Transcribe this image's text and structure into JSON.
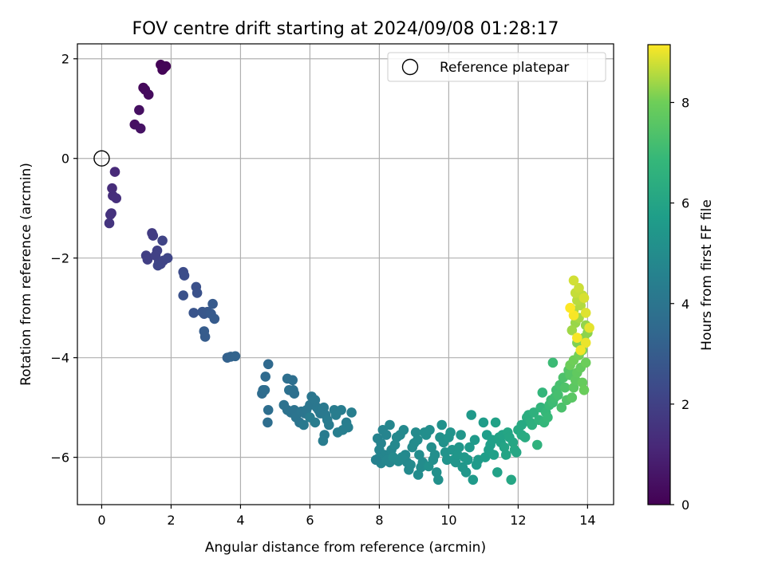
{
  "chart_data": {
    "type": "scatter",
    "title": "FOV centre drift starting at 2024/09/08 01:28:17",
    "xlabel": "Angular distance from reference (arcmin)",
    "ylabel": "Rotation from reference (arcmin)",
    "xlim": [
      -0.7,
      14.75
    ],
    "ylim": [
      -6.95,
      2.3
    ],
    "xticks": [
      0,
      2,
      4,
      6,
      8,
      10,
      12,
      14
    ],
    "yticks": [
      -6,
      -4,
      -2,
      0,
      2
    ],
    "tick_labels_x": [
      "0",
      "2",
      "4",
      "6",
      "8",
      "10",
      "12",
      "14"
    ],
    "tick_labels_y": [
      "−6",
      "−4",
      "−2",
      "0",
      "2"
    ],
    "grid": true,
    "legend": {
      "position": "top-right",
      "entries": [
        "Reference platepar"
      ]
    },
    "reference_point": {
      "x": 0,
      "y": 0,
      "marker": "open-circle"
    },
    "colorbar": {
      "label": "Hours from first FF file",
      "range": [
        0,
        9.15
      ],
      "ticks": [
        0,
        2,
        4,
        6,
        8
      ],
      "tick_labels": [
        "0",
        "2",
        "4",
        "6",
        "8"
      ],
      "colormap": "viridis"
    },
    "points": [
      [
        1.7,
        1.88,
        0.05
      ],
      [
        1.85,
        1.85,
        0.08
      ],
      [
        1.75,
        1.78,
        0.1
      ],
      [
        1.8,
        1.82,
        0.12
      ],
      [
        1.2,
        1.42,
        0.2
      ],
      [
        1.25,
        1.38,
        0.25
      ],
      [
        1.35,
        1.28,
        0.3
      ],
      [
        1.08,
        0.97,
        0.4
      ],
      [
        0.95,
        0.68,
        0.45
      ],
      [
        1.12,
        0.6,
        0.5
      ],
      [
        0.38,
        -0.27,
        1.2
      ],
      [
        0.3,
        -0.6,
        1.3
      ],
      [
        0.32,
        -0.75,
        1.35
      ],
      [
        0.42,
        -0.8,
        1.4
      ],
      [
        0.28,
        -1.1,
        1.45
      ],
      [
        0.25,
        -1.13,
        1.5
      ],
      [
        0.22,
        -1.3,
        1.55
      ],
      [
        1.45,
        -1.5,
        1.8
      ],
      [
        1.48,
        -1.55,
        1.85
      ],
      [
        1.28,
        -1.95,
        1.9
      ],
      [
        1.32,
        -2.03,
        1.95
      ],
      [
        1.6,
        -1.85,
        2.0
      ],
      [
        1.55,
        -1.95,
        2.0
      ],
      [
        1.65,
        -2.08,
        2.05
      ],
      [
        1.7,
        -2.12,
        2.1
      ],
      [
        1.78,
        -2.05,
        2.1
      ],
      [
        1.9,
        -2.0,
        2.15
      ],
      [
        1.75,
        -1.65,
        2.1
      ],
      [
        1.62,
        -2.15,
        2.15
      ],
      [
        2.35,
        -2.28,
        2.4
      ],
      [
        2.38,
        -2.35,
        2.45
      ],
      [
        2.72,
        -2.58,
        2.55
      ],
      [
        2.75,
        -2.7,
        2.6
      ],
      [
        2.35,
        -2.75,
        2.6
      ],
      [
        2.65,
        -3.1,
        2.7
      ],
      [
        2.9,
        -3.08,
        2.75
      ],
      [
        2.95,
        -3.12,
        2.8
      ],
      [
        3.05,
        -3.08,
        2.85
      ],
      [
        3.2,
        -2.92,
        2.9
      ],
      [
        3.15,
        -3.12,
        2.9
      ],
      [
        3.25,
        -3.22,
        2.95
      ],
      [
        2.95,
        -3.47,
        3.0
      ],
      [
        2.98,
        -3.58,
        3.0
      ],
      [
        3.62,
        -4.0,
        3.2
      ],
      [
        3.72,
        -3.98,
        3.25
      ],
      [
        3.85,
        -3.97,
        3.3
      ],
      [
        4.8,
        -4.13,
        3.5
      ],
      [
        4.72,
        -4.38,
        3.55
      ],
      [
        4.65,
        -4.65,
        3.6
      ],
      [
        4.62,
        -4.72,
        3.6
      ],
      [
        4.7,
        -4.65,
        3.65
      ],
      [
        4.8,
        -5.05,
        3.7
      ],
      [
        4.78,
        -5.3,
        3.7
      ],
      [
        5.5,
        -4.45,
        3.75
      ],
      [
        5.35,
        -4.42,
        3.75
      ],
      [
        5.52,
        -4.65,
        3.8
      ],
      [
        5.55,
        -4.72,
        3.8
      ],
      [
        5.4,
        -4.65,
        3.8
      ],
      [
        5.25,
        -4.95,
        3.85
      ],
      [
        5.35,
        -5.05,
        3.85
      ],
      [
        5.45,
        -5.1,
        3.9
      ],
      [
        5.55,
        -5.05,
        3.9
      ],
      [
        5.6,
        -5.2,
        3.95
      ],
      [
        5.7,
        -5.3,
        3.95
      ],
      [
        5.75,
        -5.08,
        4.0
      ],
      [
        5.85,
        -5.12,
        4.0
      ],
      [
        5.9,
        -5.05,
        4.05
      ],
      [
        6.0,
        -4.95,
        4.05
      ],
      [
        6.05,
        -4.78,
        4.05
      ],
      [
        6.15,
        -4.85,
        4.1
      ],
      [
        6.2,
        -5.0,
        4.1
      ],
      [
        6.25,
        -5.05,
        4.15
      ],
      [
        6.3,
        -5.12,
        4.15
      ],
      [
        6.35,
        -5.05,
        4.2
      ],
      [
        6.4,
        -5.0,
        4.2
      ],
      [
        6.45,
        -5.15,
        4.2
      ],
      [
        6.5,
        -5.25,
        4.25
      ],
      [
        6.55,
        -5.35,
        4.25
      ],
      [
        6.42,
        -5.55,
        4.25
      ],
      [
        6.38,
        -5.67,
        4.3
      ],
      [
        6.7,
        -5.05,
        4.3
      ],
      [
        6.75,
        -5.15,
        4.35
      ],
      [
        6.9,
        -5.05,
        4.35
      ],
      [
        7.05,
        -5.3,
        4.35
      ],
      [
        7.1,
        -5.4,
        4.4
      ],
      [
        7.2,
        -5.1,
        4.4
      ],
      [
        6.8,
        -5.5,
        4.4
      ],
      [
        6.95,
        -5.45,
        4.4
      ],
      [
        6.15,
        -5.3,
        4.3
      ],
      [
        6.0,
        -5.2,
        4.3
      ],
      [
        5.82,
        -5.35,
        4.2
      ],
      [
        7.95,
        -5.62,
        4.6
      ],
      [
        8.05,
        -5.72,
        4.6
      ],
      [
        8.1,
        -5.45,
        4.65
      ],
      [
        8.2,
        -5.55,
        4.65
      ],
      [
        8.0,
        -5.85,
        4.65
      ],
      [
        8.15,
        -5.95,
        4.7
      ],
      [
        7.98,
        -6.02,
        4.7
      ],
      [
        8.05,
        -6.12,
        4.7
      ],
      [
        8.22,
        -6.05,
        4.75
      ],
      [
        8.3,
        -6.1,
        4.75
      ],
      [
        8.35,
        -5.85,
        4.75
      ],
      [
        8.45,
        -5.75,
        4.8
      ],
      [
        8.5,
        -5.6,
        4.8
      ],
      [
        8.6,
        -5.55,
        4.8
      ],
      [
        8.7,
        -5.45,
        4.85
      ],
      [
        8.75,
        -5.95,
        4.85
      ],
      [
        8.8,
        -6.1,
        4.85
      ],
      [
        8.85,
        -6.25,
        4.9
      ],
      [
        8.9,
        -6.15,
        4.9
      ],
      [
        8.65,
        -6.0,
        4.9
      ],
      [
        8.55,
        -6.08,
        4.9
      ],
      [
        8.4,
        -6.0,
        4.9
      ],
      [
        8.95,
        -5.8,
        4.95
      ],
      [
        9.0,
        -5.72,
        4.95
      ],
      [
        9.05,
        -5.5,
        4.95
      ],
      [
        9.1,
        -5.65,
        5.0
      ],
      [
        9.15,
        -5.95,
        5.0
      ],
      [
        9.2,
        -6.2,
        5.0
      ],
      [
        9.25,
        -6.1,
        5.0
      ],
      [
        9.3,
        -5.5,
        5.05
      ],
      [
        9.35,
        -5.55,
        5.05
      ],
      [
        9.45,
        -5.45,
        5.05
      ],
      [
        9.5,
        -5.8,
        5.1
      ],
      [
        9.55,
        -6.05,
        5.1
      ],
      [
        9.6,
        -5.95,
        5.1
      ],
      [
        9.65,
        -6.3,
        5.15
      ],
      [
        9.7,
        -6.45,
        5.15
      ],
      [
        9.42,
        -6.18,
        5.15
      ],
      [
        9.75,
        -5.6,
        5.2
      ],
      [
        9.8,
        -5.35,
        5.2
      ],
      [
        9.85,
        -5.7,
        5.2
      ],
      [
        9.9,
        -5.9,
        5.25
      ],
      [
        9.95,
        -6.05,
        5.25
      ],
      [
        10.0,
        -5.6,
        5.3
      ],
      [
        10.05,
        -5.5,
        5.3
      ],
      [
        10.1,
        -5.85,
        5.3
      ],
      [
        10.15,
        -6.05,
        5.35
      ],
      [
        10.2,
        -6.1,
        5.35
      ],
      [
        10.25,
        -5.95,
        5.4
      ],
      [
        10.3,
        -5.8,
        5.4
      ],
      [
        10.35,
        -5.55,
        5.4
      ],
      [
        10.4,
        -6.2,
        5.45
      ],
      [
        10.5,
        -6.3,
        5.45
      ],
      [
        10.55,
        -6.05,
        5.5
      ],
      [
        10.6,
        -5.8,
        5.5
      ],
      [
        10.65,
        -5.15,
        5.5
      ],
      [
        10.7,
        -6.45,
        5.55
      ],
      [
        10.75,
        -5.65,
        5.55
      ],
      [
        10.8,
        -6.15,
        5.6
      ],
      [
        10.85,
        -6.05,
        5.6
      ],
      [
        11.0,
        -5.3,
        5.65
      ],
      [
        11.05,
        -6.0,
        5.7
      ],
      [
        11.1,
        -5.55,
        5.7
      ],
      [
        11.15,
        -5.85,
        5.75
      ],
      [
        11.2,
        -5.75,
        5.75
      ],
      [
        11.25,
        -5.65,
        5.8
      ],
      [
        11.3,
        -5.95,
        5.8
      ],
      [
        11.35,
        -5.3,
        5.85
      ],
      [
        11.4,
        -6.3,
        5.85
      ],
      [
        11.45,
        -5.6,
        5.9
      ],
      [
        11.5,
        -5.7,
        5.9
      ],
      [
        11.55,
        -5.55,
        5.95
      ],
      [
        11.6,
        -5.8,
        6.0
      ],
      [
        11.65,
        -5.95,
        6.0
      ],
      [
        11.7,
        -5.5,
        6.05
      ],
      [
        11.75,
        -5.6,
        6.05
      ],
      [
        11.8,
        -6.45,
        6.1
      ],
      [
        11.85,
        -5.7,
        6.1
      ],
      [
        11.9,
        -5.85,
        6.15
      ],
      [
        12.0,
        -5.45,
        6.2
      ],
      [
        12.1,
        -5.55,
        6.25
      ],
      [
        12.2,
        -5.6,
        6.3
      ],
      [
        12.25,
        -5.2,
        6.35
      ],
      [
        12.3,
        -5.15,
        6.4
      ],
      [
        12.35,
        -5.3,
        6.45
      ],
      [
        12.4,
        -5.35,
        6.5
      ],
      [
        12.45,
        -5.1,
        6.55
      ],
      [
        12.55,
        -5.75,
        6.6
      ],
      [
        12.6,
        -5.25,
        6.65
      ],
      [
        12.65,
        -5.0,
        6.7
      ],
      [
        12.7,
        -4.7,
        6.75
      ],
      [
        12.75,
        -5.3,
        6.8
      ],
      [
        12.8,
        -5.1,
        6.85
      ],
      [
        12.85,
        -5.2,
        6.9
      ],
      [
        12.9,
        -4.95,
        6.95
      ],
      [
        12.95,
        -4.85,
        7.0
      ],
      [
        13.0,
        -4.9,
        7.05
      ],
      [
        13.05,
        -4.8,
        7.1
      ],
      [
        13.1,
        -4.65,
        7.15
      ],
      [
        13.15,
        -4.75,
        7.2
      ],
      [
        13.2,
        -4.55,
        7.25
      ],
      [
        13.25,
        -5.0,
        7.3
      ],
      [
        13.3,
        -4.4,
        7.35
      ],
      [
        13.35,
        -4.6,
        7.4
      ],
      [
        13.4,
        -4.85,
        7.45
      ],
      [
        13.45,
        -4.25,
        7.5
      ],
      [
        13.5,
        -4.35,
        7.55
      ],
      [
        13.55,
        -4.8,
        7.6
      ],
      [
        13.6,
        -4.6,
        7.65
      ],
      [
        13.65,
        -4.45,
        7.7
      ],
      [
        13.7,
        -4.3,
        7.75
      ],
      [
        13.8,
        -4.2,
        7.8
      ],
      [
        13.85,
        -4.5,
        7.85
      ],
      [
        13.9,
        -4.65,
        7.9
      ],
      [
        13.95,
        -4.1,
        7.95
      ],
      [
        13.5,
        -4.15,
        7.95
      ],
      [
        13.6,
        -4.05,
        8.0
      ],
      [
        13.75,
        -3.95,
        8.05
      ],
      [
        13.85,
        -3.85,
        8.1
      ],
      [
        13.7,
        -3.7,
        8.15
      ],
      [
        13.9,
        -3.6,
        8.2
      ],
      [
        14.0,
        -3.5,
        8.25
      ],
      [
        13.95,
        -3.35,
        8.3
      ],
      [
        13.65,
        -3.3,
        8.35
      ],
      [
        13.55,
        -3.45,
        8.4
      ],
      [
        13.75,
        -3.2,
        8.45
      ],
      [
        13.6,
        -3.05,
        8.5
      ],
      [
        13.8,
        -2.95,
        8.55
      ],
      [
        13.7,
        -2.85,
        8.6
      ],
      [
        13.85,
        -2.75,
        8.65
      ],
      [
        13.65,
        -2.7,
        8.7
      ],
      [
        13.75,
        -2.6,
        8.75
      ],
      [
        13.6,
        -2.45,
        8.8
      ],
      [
        13.9,
        -2.8,
        8.85
      ],
      [
        13.95,
        -3.1,
        8.9
      ],
      [
        14.05,
        -3.4,
        8.95
      ],
      [
        13.95,
        -3.7,
        9.0
      ],
      [
        13.8,
        -3.85,
        9.05
      ],
      [
        13.7,
        -3.6,
        9.1
      ],
      [
        13.6,
        -3.15,
        9.1
      ],
      [
        13.5,
        -3.0,
        9.15
      ],
      [
        13.0,
        -4.1,
        7.0
      ],
      [
        12.1,
        -5.35,
        6.2
      ],
      [
        11.95,
        -5.9,
        6.1
      ],
      [
        10.45,
        -6.0,
        5.5
      ],
      [
        9.12,
        -6.35,
        5.0
      ],
      [
        8.3,
        -5.35,
        4.75
      ],
      [
        7.9,
        -6.05,
        4.55
      ]
    ]
  }
}
